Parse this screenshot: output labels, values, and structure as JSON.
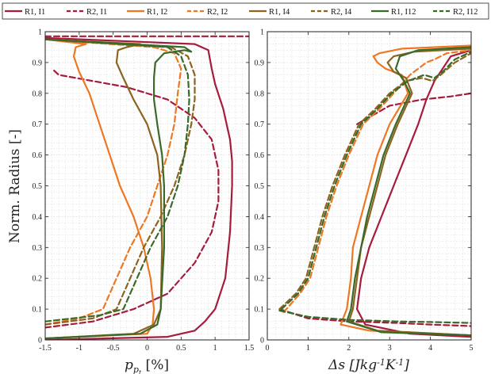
{
  "chart_data": [
    {
      "type": "line",
      "id": "left",
      "xlabel": "p_{p_t} [%]",
      "ylabel": "Norm. Radius [-]",
      "xlim": [
        -1.5,
        1.5
      ],
      "ylim": [
        0,
        1
      ],
      "xticks": [
        "-1.5",
        "-1",
        "-0.5",
        "0",
        "0.5",
        "1",
        "1.5"
      ],
      "yticks": [
        "0",
        "0.1",
        "0.2",
        "0.3",
        "0.4",
        "0.5",
        "0.6",
        "0.7",
        "0.8",
        "0.9",
        "1"
      ],
      "grid": true,
      "series": [
        {
          "name": "R1, I1",
          "color": "#a51c3c",
          "dash": false,
          "x": [
            -1.5,
            0.3,
            0.7,
            0.85,
            1.0,
            1.15,
            1.22,
            1.25,
            1.25,
            1.22,
            1.12,
            1.0,
            0.95,
            0.9,
            0.7,
            -1.5
          ],
          "y": [
            0.0,
            0.01,
            0.03,
            0.06,
            0.1,
            0.2,
            0.35,
            0.5,
            0.58,
            0.65,
            0.75,
            0.83,
            0.88,
            0.94,
            0.96,
            0.98
          ]
        },
        {
          "name": "R2, I1",
          "color": "#a51c3c",
          "dash": true,
          "x": [
            -1.5,
            -0.8,
            -0.2,
            0.3,
            0.7,
            0.95,
            1.05,
            1.05,
            0.95,
            0.7,
            0.3,
            -0.3,
            -1.3,
            -1.4
          ],
          "y": [
            0.04,
            0.06,
            0.1,
            0.15,
            0.25,
            0.35,
            0.45,
            0.55,
            0.65,
            0.72,
            0.78,
            0.82,
            0.86,
            0.88
          ]
        },
        {
          "name": "R2, I1",
          "color": "#a51c3c",
          "dash": true,
          "x": [
            -1.5,
            1.5
          ],
          "y": [
            0.985,
            0.985
          ]
        },
        {
          "name": "R1, I2",
          "color": "#ee7722",
          "dash": false,
          "x": [
            -1.5,
            0.0,
            0.08,
            0.1,
            0.05,
            -0.05,
            -0.2,
            -0.4,
            -0.55,
            -0.7,
            -0.85,
            -1.0,
            -1.08,
            -1.05,
            -0.9,
            -1.5
          ],
          "y": [
            0.005,
            0.02,
            0.05,
            0.1,
            0.2,
            0.3,
            0.4,
            0.5,
            0.6,
            0.7,
            0.8,
            0.87,
            0.92,
            0.95,
            0.96,
            0.975
          ]
        },
        {
          "name": "R2, I2",
          "color": "#ee7722",
          "dash": true,
          "x": [
            -1.5,
            -1.0,
            -0.65,
            -0.45,
            -0.25,
            0.0,
            0.15,
            0.3,
            0.4,
            0.45,
            0.5,
            0.4,
            0.1,
            -1.5
          ],
          "y": [
            0.05,
            0.07,
            0.1,
            0.2,
            0.3,
            0.4,
            0.5,
            0.6,
            0.7,
            0.8,
            0.88,
            0.93,
            0.95,
            0.975
          ]
        },
        {
          "name": "R1, I4",
          "color": "#8c6420",
          "dash": false,
          "x": [
            -1.5,
            -0.2,
            0.1,
            0.2,
            0.22,
            0.2,
            0.15,
            0.0,
            -0.2,
            -0.35,
            -0.45,
            -0.43,
            -0.3,
            -0.1,
            -1.5
          ],
          "y": [
            0.005,
            0.02,
            0.05,
            0.1,
            0.3,
            0.5,
            0.6,
            0.7,
            0.78,
            0.85,
            0.9,
            0.94,
            0.95,
            0.96,
            0.975
          ]
        },
        {
          "name": "R2, I4",
          "color": "#8c6420",
          "dash": true,
          "x": [
            -1.5,
            -0.8,
            -0.45,
            -0.25,
            -0.05,
            0.2,
            0.4,
            0.55,
            0.65,
            0.7,
            0.7,
            0.6,
            0.35,
            -1.5
          ],
          "y": [
            0.05,
            0.07,
            0.1,
            0.2,
            0.3,
            0.4,
            0.5,
            0.6,
            0.7,
            0.78,
            0.86,
            0.92,
            0.95,
            0.975
          ]
        },
        {
          "name": "R1, I12",
          "color": "#3a6a2a",
          "dash": false,
          "x": [
            -1.5,
            -0.1,
            0.15,
            0.2,
            0.25,
            0.25,
            0.22,
            0.15,
            0.1,
            0.1,
            0.12,
            0.25,
            0.55,
            0.65,
            0.55,
            -1.5
          ],
          "y": [
            0.005,
            0.02,
            0.05,
            0.1,
            0.3,
            0.5,
            0.6,
            0.7,
            0.78,
            0.85,
            0.9,
            0.93,
            0.94,
            0.935,
            0.95,
            0.975
          ]
        },
        {
          "name": "R2, I12",
          "color": "#3a6a2a",
          "dash": true,
          "x": [
            -1.5,
            -0.7,
            -0.35,
            -0.15,
            0.05,
            0.3,
            0.45,
            0.55,
            0.6,
            0.62,
            0.6,
            0.5,
            0.3,
            -1.5
          ],
          "y": [
            0.06,
            0.08,
            0.1,
            0.2,
            0.3,
            0.4,
            0.5,
            0.6,
            0.7,
            0.78,
            0.86,
            0.92,
            0.95,
            0.975
          ]
        }
      ]
    },
    {
      "type": "line",
      "id": "right",
      "xlabel": "Δs [Jkg^{-1}K^{-1}]",
      "xlim": [
        0,
        5
      ],
      "ylim": [
        0,
        1
      ],
      "xticks": [
        "0",
        "1",
        "2",
        "3",
        "4",
        "5"
      ],
      "yticks": [
        "0",
        "0.1",
        "0.2",
        "0.3",
        "0.4",
        "0.5",
        "0.6",
        "0.7",
        "0.8",
        "0.9",
        "1"
      ],
      "grid": true,
      "series": [
        {
          "name": "R1, I1",
          "color": "#a51c3c",
          "dash": false,
          "x": [
            5.0,
            3.5,
            2.4,
            2.2,
            2.3,
            2.5,
            2.8,
            3.1,
            3.4,
            3.7,
            3.9,
            4.1,
            4.3,
            4.5,
            5.0
          ],
          "y": [
            0.01,
            0.02,
            0.05,
            0.1,
            0.2,
            0.3,
            0.4,
            0.5,
            0.6,
            0.7,
            0.78,
            0.84,
            0.88,
            0.92,
            0.94
          ]
        },
        {
          "name": "R2, I1",
          "color": "#a51c3c",
          "dash": true,
          "x": [
            0.3,
            1.0,
            2.0,
            3.2,
            4.0,
            5.0
          ],
          "y": [
            0.1,
            0.07,
            0.06,
            0.055,
            0.05,
            0.045
          ]
        },
        {
          "name": "R2, I1",
          "color": "#a51c3c",
          "dash": true,
          "x": [
            2.2,
            3.0,
            3.8,
            4.5,
            5.0
          ],
          "y": [
            0.7,
            0.76,
            0.78,
            0.79,
            0.8
          ]
        },
        {
          "name": "R1, I2",
          "color": "#ee7722",
          "dash": false,
          "x": [
            5.0,
            2.5,
            1.8,
            1.95,
            2.05,
            2.1,
            2.3,
            2.5,
            2.7,
            3.0,
            3.45,
            3.3,
            2.9,
            2.7,
            2.6,
            2.75,
            3.3,
            5.0
          ],
          "y": [
            0.015,
            0.03,
            0.05,
            0.1,
            0.2,
            0.3,
            0.4,
            0.5,
            0.6,
            0.7,
            0.8,
            0.86,
            0.88,
            0.9,
            0.92,
            0.93,
            0.945,
            0.955
          ]
        },
        {
          "name": "R2, I2",
          "color": "#ee7722",
          "dash": true,
          "x": [
            0.4,
            0.8,
            1.05,
            1.25,
            1.45,
            1.7,
            2.0,
            2.35,
            2.75,
            3.1,
            3.5,
            3.9,
            4.1,
            4.4,
            5.0
          ],
          "y": [
            0.09,
            0.15,
            0.2,
            0.3,
            0.4,
            0.5,
            0.6,
            0.7,
            0.75,
            0.8,
            0.86,
            0.9,
            0.91,
            0.93,
            0.94
          ]
        },
        {
          "name": "R1, I4",
          "color": "#8c6420",
          "dash": false,
          "x": [
            5.0,
            2.7,
            2.0,
            2.1,
            2.2,
            2.3,
            2.5,
            2.7,
            2.9,
            3.2,
            3.55,
            3.4,
            3.1,
            2.95,
            3.1,
            3.6,
            5.0
          ],
          "y": [
            0.015,
            0.03,
            0.06,
            0.1,
            0.2,
            0.3,
            0.4,
            0.5,
            0.6,
            0.7,
            0.8,
            0.85,
            0.87,
            0.9,
            0.92,
            0.935,
            0.945
          ]
        },
        {
          "name": "R2, I4",
          "color": "#8c6420",
          "dash": true,
          "x": [
            0.3,
            0.7,
            0.95,
            1.15,
            1.35,
            1.6,
            1.9,
            2.25,
            2.65,
            3.0,
            3.4,
            3.8,
            4.05,
            4.25,
            4.6,
            5.0
          ],
          "y": [
            0.1,
            0.15,
            0.2,
            0.3,
            0.4,
            0.5,
            0.6,
            0.7,
            0.75,
            0.8,
            0.84,
            0.85,
            0.84,
            0.86,
            0.9,
            0.93
          ]
        },
        {
          "name": "R1, I12",
          "color": "#3a6a2a",
          "dash": false,
          "x": [
            5.0,
            2.8,
            1.95,
            2.05,
            2.15,
            2.3,
            2.45,
            2.65,
            2.85,
            3.15,
            3.5,
            3.35,
            3.15,
            3.25,
            3.7,
            5.0
          ],
          "y": [
            0.015,
            0.025,
            0.06,
            0.1,
            0.2,
            0.3,
            0.4,
            0.5,
            0.6,
            0.7,
            0.8,
            0.84,
            0.88,
            0.92,
            0.94,
            0.95
          ]
        },
        {
          "name": "R2, I12",
          "color": "#3a6a2a",
          "dash": true,
          "x": [
            0.35,
            0.75,
            1.0,
            1.2,
            1.4,
            1.65,
            1.95,
            2.3,
            2.7,
            3.05,
            3.45,
            3.85,
            4.1,
            4.3,
            4.6,
            5.0
          ],
          "y": [
            0.1,
            0.15,
            0.2,
            0.3,
            0.4,
            0.5,
            0.6,
            0.7,
            0.75,
            0.8,
            0.84,
            0.86,
            0.85,
            0.87,
            0.91,
            0.935
          ]
        },
        {
          "name": "R2, I12",
          "color": "#3a6a2a",
          "dash": true,
          "x": [
            0.3,
            1.0,
            2.0,
            3.2,
            4.0,
            5.0
          ],
          "y": [
            0.095,
            0.075,
            0.065,
            0.06,
            0.058,
            0.055
          ]
        }
      ]
    }
  ],
  "legend": [
    {
      "label": "R1, I1",
      "color": "#a51c3c",
      "dash": false
    },
    {
      "label": "R2, I1",
      "color": "#a51c3c",
      "dash": true
    },
    {
      "label": "R1, I2",
      "color": "#ee7722",
      "dash": false
    },
    {
      "label": "R2, I2",
      "color": "#ee7722",
      "dash": true
    },
    {
      "label": "R1, I4",
      "color": "#8c6420",
      "dash": false
    },
    {
      "label": "R2, I4",
      "color": "#8c6420",
      "dash": true
    },
    {
      "label": "R1, I12",
      "color": "#3a6a2a",
      "dash": false
    },
    {
      "label": "R2, I12",
      "color": "#3a6a2a",
      "dash": true
    }
  ]
}
